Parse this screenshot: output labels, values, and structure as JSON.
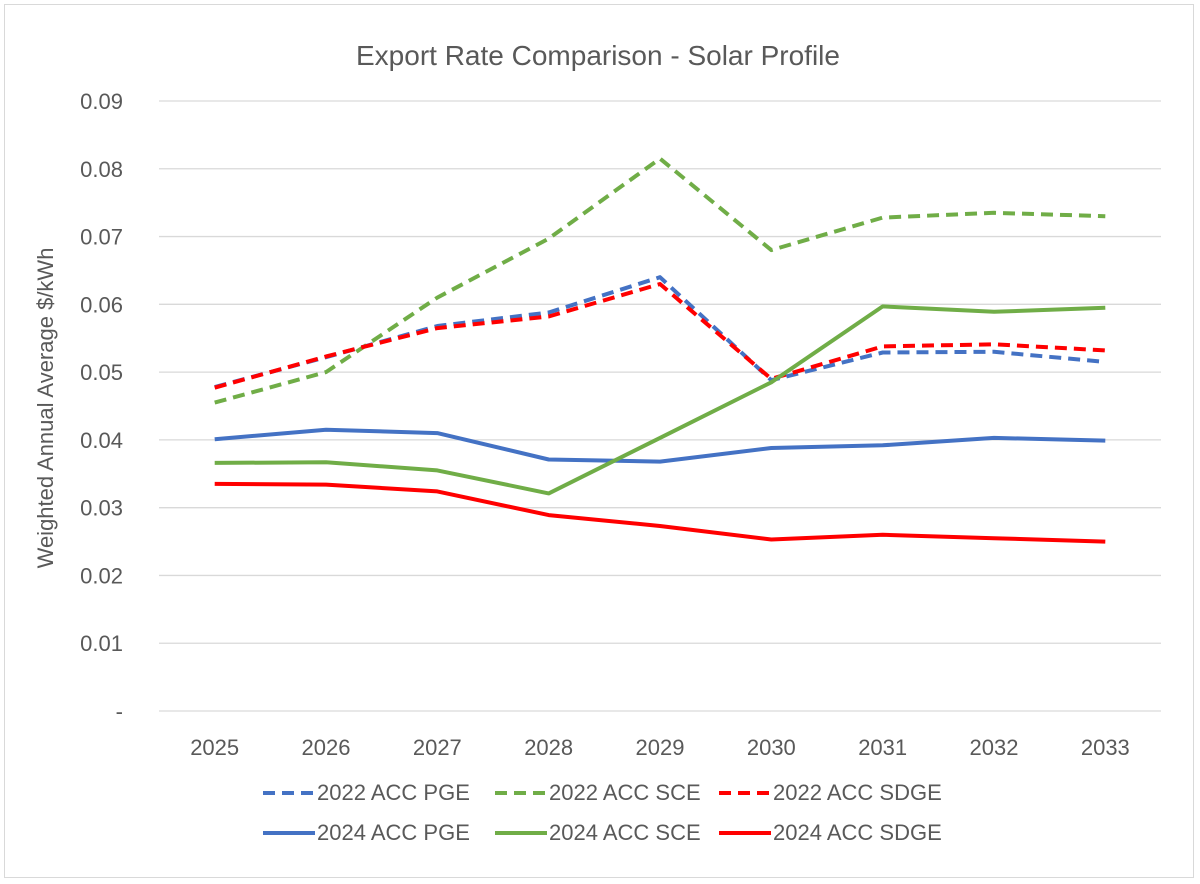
{
  "chart_data": {
    "type": "line",
    "title": "Export Rate Comparison - Solar Profile",
    "xlabel": "",
    "ylabel": "Weighted Annual Average $/kWh",
    "categories": [
      "2025",
      "2026",
      "2027",
      "2028",
      "2029",
      "2030",
      "2031",
      "2032",
      "2033"
    ],
    "ylim": [
      0,
      0.09
    ],
    "yticks": [
      0,
      0.01,
      0.02,
      0.03,
      0.04,
      0.05,
      0.06,
      0.07,
      0.08,
      0.09
    ],
    "ytick_labels": [
      "-",
      "0.01",
      "0.02",
      "0.03",
      "0.04",
      "0.05",
      "0.06",
      "0.07",
      "0.08",
      "0.09"
    ],
    "grid": true,
    "legend_position": "bottom",
    "series": [
      {
        "name": "2022 ACC PGE",
        "color": "#4472c4",
        "dash": true,
        "values": [
          0.0478,
          0.0522,
          0.0568,
          0.0588,
          0.064,
          0.0488,
          0.0529,
          0.053,
          0.0515
        ]
      },
      {
        "name": "2022 ACC SCE",
        "color": "#70ad47",
        "dash": true,
        "values": [
          0.0455,
          0.05,
          0.061,
          0.0697,
          0.0815,
          0.068,
          0.0728,
          0.0735,
          0.073
        ]
      },
      {
        "name": "2022 ACC SDGE",
        "color": "#ff0000",
        "dash": true,
        "values": [
          0.0477,
          0.0523,
          0.0565,
          0.0582,
          0.063,
          0.049,
          0.0538,
          0.0541,
          0.0532
        ]
      },
      {
        "name": "2024 ACC PGE",
        "color": "#4472c4",
        "dash": false,
        "values": [
          0.0401,
          0.0415,
          0.041,
          0.0371,
          0.0368,
          0.0388,
          0.0392,
          0.0403,
          0.0399
        ]
      },
      {
        "name": "2024 ACC SCE",
        "color": "#70ad47",
        "dash": false,
        "values": [
          0.0366,
          0.0367,
          0.0355,
          0.0321,
          0.0403,
          0.0485,
          0.0597,
          0.0589,
          0.0595
        ]
      },
      {
        "name": "2024 ACC SDGE",
        "color": "#ff0000",
        "dash": false,
        "values": [
          0.0335,
          0.0334,
          0.0324,
          0.0289,
          0.0273,
          0.0253,
          0.026,
          0.0255,
          0.025
        ]
      }
    ]
  }
}
